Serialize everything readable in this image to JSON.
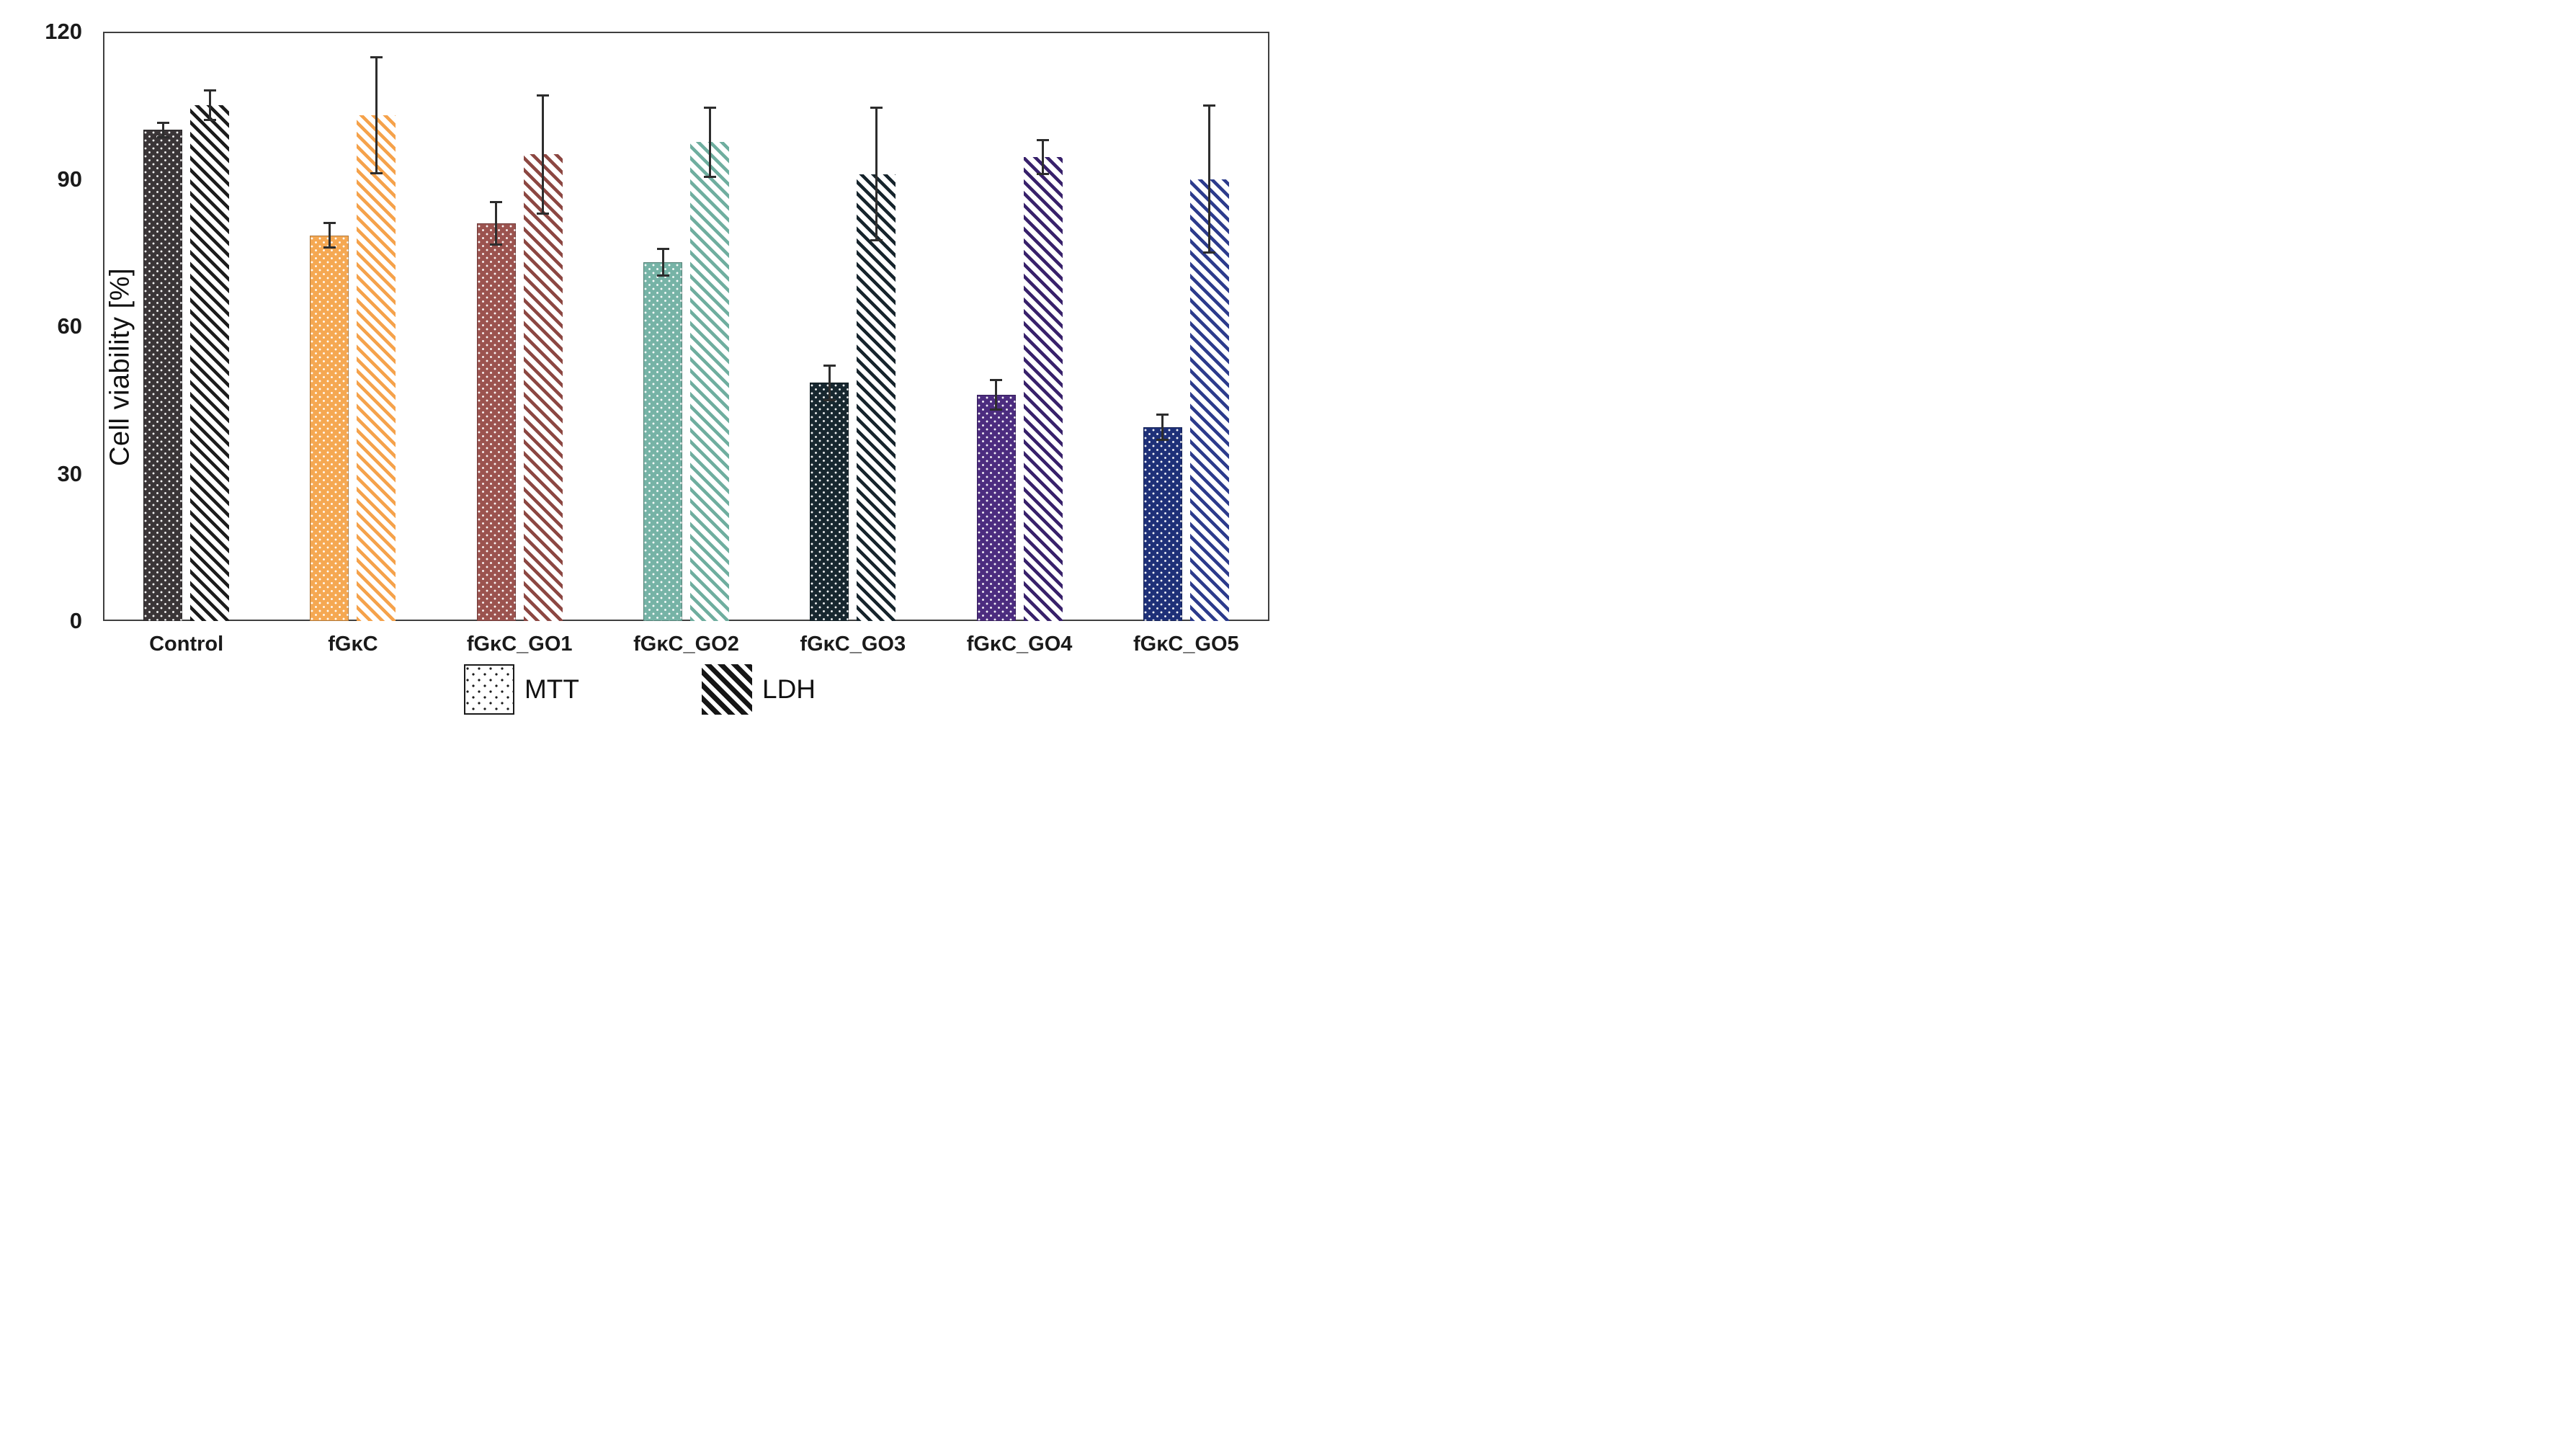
{
  "chart_data": {
    "type": "bar",
    "title": "",
    "xlabel": "",
    "ylabel": "Cell viability [%]",
    "ylim": [
      0,
      120
    ],
    "yticks": [
      0,
      30,
      60,
      90,
      120
    ],
    "grid": false,
    "legend_position": "bottom",
    "categories": [
      "Control",
      "fGκC",
      "fGκC_GO1",
      "fGκC_GO2",
      "fGκC_GO3",
      "fGκC_GO4",
      "fGκC_GO5"
    ],
    "series": [
      {
        "name": "MTT",
        "pattern": "dots",
        "values": [
          100,
          78.5,
          81,
          73,
          48.5,
          46,
          39.5
        ],
        "errors": [
          1.5,
          2.5,
          4.3,
          2.7,
          3.5,
          3,
          2.6
        ]
      },
      {
        "name": "LDH",
        "pattern": "diagonal-hatch",
        "values": [
          105,
          103,
          95,
          97.5,
          91,
          94.5,
          90
        ],
        "errors": [
          3,
          11.8,
          12,
          7,
          13.5,
          3.4,
          15
        ]
      }
    ],
    "category_colors": [
      {
        "fill": "#3a3537",
        "hatch": "#1c1c1c"
      },
      {
        "fill": "#f5a852",
        "hatch": "#f5a24b"
      },
      {
        "fill": "#9b534f",
        "hatch": "#8c4742"
      },
      {
        "fill": "#76b3a6",
        "hatch": "#6fae9f"
      },
      {
        "fill": "#17272f",
        "hatch": "#16242c"
      },
      {
        "fill": "#4c2c7f",
        "hatch": "#38216b"
      },
      {
        "fill": "#1e3078",
        "hatch": "#2c3b8c"
      }
    ],
    "legend": [
      {
        "label": "MTT",
        "pattern": "dots"
      },
      {
        "label": "LDH",
        "pattern": "diagonal-hatch"
      }
    ]
  }
}
